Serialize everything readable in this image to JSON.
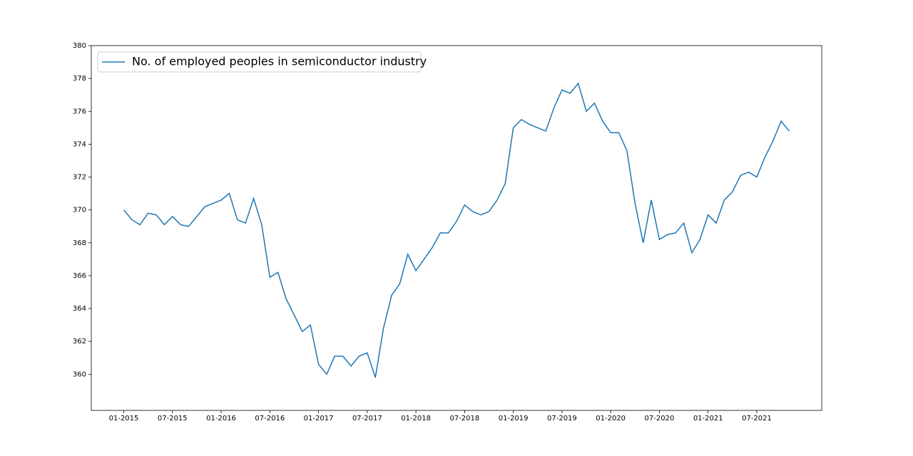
{
  "chart_data": {
    "type": "line",
    "x": [
      "2015-01",
      "2015-02",
      "2015-03",
      "2015-04",
      "2015-05",
      "2015-06",
      "2015-07",
      "2015-08",
      "2015-09",
      "2015-10",
      "2015-11",
      "2015-12",
      "2016-01",
      "2016-02",
      "2016-03",
      "2016-04",
      "2016-05",
      "2016-06",
      "2016-07",
      "2016-08",
      "2016-09",
      "2016-10",
      "2016-11",
      "2016-12",
      "2017-01",
      "2017-02",
      "2017-03",
      "2017-04",
      "2017-05",
      "2017-06",
      "2017-07",
      "2017-08",
      "2017-09",
      "2017-10",
      "2017-11",
      "2017-12",
      "2018-01",
      "2018-02",
      "2018-03",
      "2018-04",
      "2018-05",
      "2018-06",
      "2018-07",
      "2018-08",
      "2018-09",
      "2018-10",
      "2018-11",
      "2018-12",
      "2019-01",
      "2019-02",
      "2019-03",
      "2019-04",
      "2019-05",
      "2019-06",
      "2019-07",
      "2019-08",
      "2019-09",
      "2019-10",
      "2019-11",
      "2019-12",
      "2020-01",
      "2020-02",
      "2020-03",
      "2020-04",
      "2020-05",
      "2020-06",
      "2020-07",
      "2020-08",
      "2020-09",
      "2020-10",
      "2020-11",
      "2020-12",
      "2021-01",
      "2021-02",
      "2021-03",
      "2021-04",
      "2021-05",
      "2021-06",
      "2021-07",
      "2021-08",
      "2021-09",
      "2021-10",
      "2021-11"
    ],
    "series": [
      {
        "name": "No. of employed peoples in semiconductor industry",
        "color": "#1f77b4",
        "values": [
          370.0,
          369.4,
          369.1,
          369.8,
          369.7,
          369.1,
          369.6,
          369.1,
          369.0,
          369.6,
          370.2,
          370.4,
          370.6,
          371.0,
          369.4,
          369.2,
          370.7,
          369.1,
          365.9,
          366.2,
          364.6,
          363.6,
          362.6,
          363.0,
          360.6,
          360.0,
          361.1,
          361.1,
          360.5,
          361.1,
          361.3,
          359.8,
          362.8,
          364.8,
          365.5,
          367.3,
          366.3,
          367.0,
          367.7,
          368.6,
          368.6,
          369.3,
          370.3,
          369.9,
          369.7,
          369.9,
          370.6,
          371.6,
          375.0,
          375.5,
          375.2,
          375.0,
          374.8,
          376.2,
          377.3,
          377.1,
          377.7,
          376.0,
          376.5,
          375.4,
          374.7,
          374.7,
          373.6,
          370.4,
          368.0,
          370.6,
          368.2,
          368.5,
          368.6,
          369.2,
          367.4,
          368.2,
          369.7,
          369.2,
          370.6,
          371.1,
          372.1,
          372.3,
          372.0,
          373.2,
          374.2,
          375.4,
          374.8
        ]
      }
    ],
    "xlim": [
      "2014-09",
      "2022-03"
    ],
    "xticks": [
      {
        "value": "2015-01",
        "label": "01-2015"
      },
      {
        "value": "2015-07",
        "label": "07-2015"
      },
      {
        "value": "2016-01",
        "label": "01-2016"
      },
      {
        "value": "2016-07",
        "label": "07-2016"
      },
      {
        "value": "2017-01",
        "label": "01-2017"
      },
      {
        "value": "2017-07",
        "label": "07-2017"
      },
      {
        "value": "2018-01",
        "label": "01-2018"
      },
      {
        "value": "2018-07",
        "label": "07-2018"
      },
      {
        "value": "2019-01",
        "label": "01-2019"
      },
      {
        "value": "2019-07",
        "label": "07-2019"
      },
      {
        "value": "2020-01",
        "label": "01-2020"
      },
      {
        "value": "2020-07",
        "label": "07-2020"
      },
      {
        "value": "2021-01",
        "label": "01-2021"
      },
      {
        "value": "2021-07",
        "label": "07-2021"
      }
    ],
    "ylim": [
      357.8,
      380
    ],
    "yticks": [
      360,
      362,
      364,
      366,
      368,
      370,
      372,
      374,
      376,
      378,
      380
    ],
    "legend": "upper left"
  }
}
